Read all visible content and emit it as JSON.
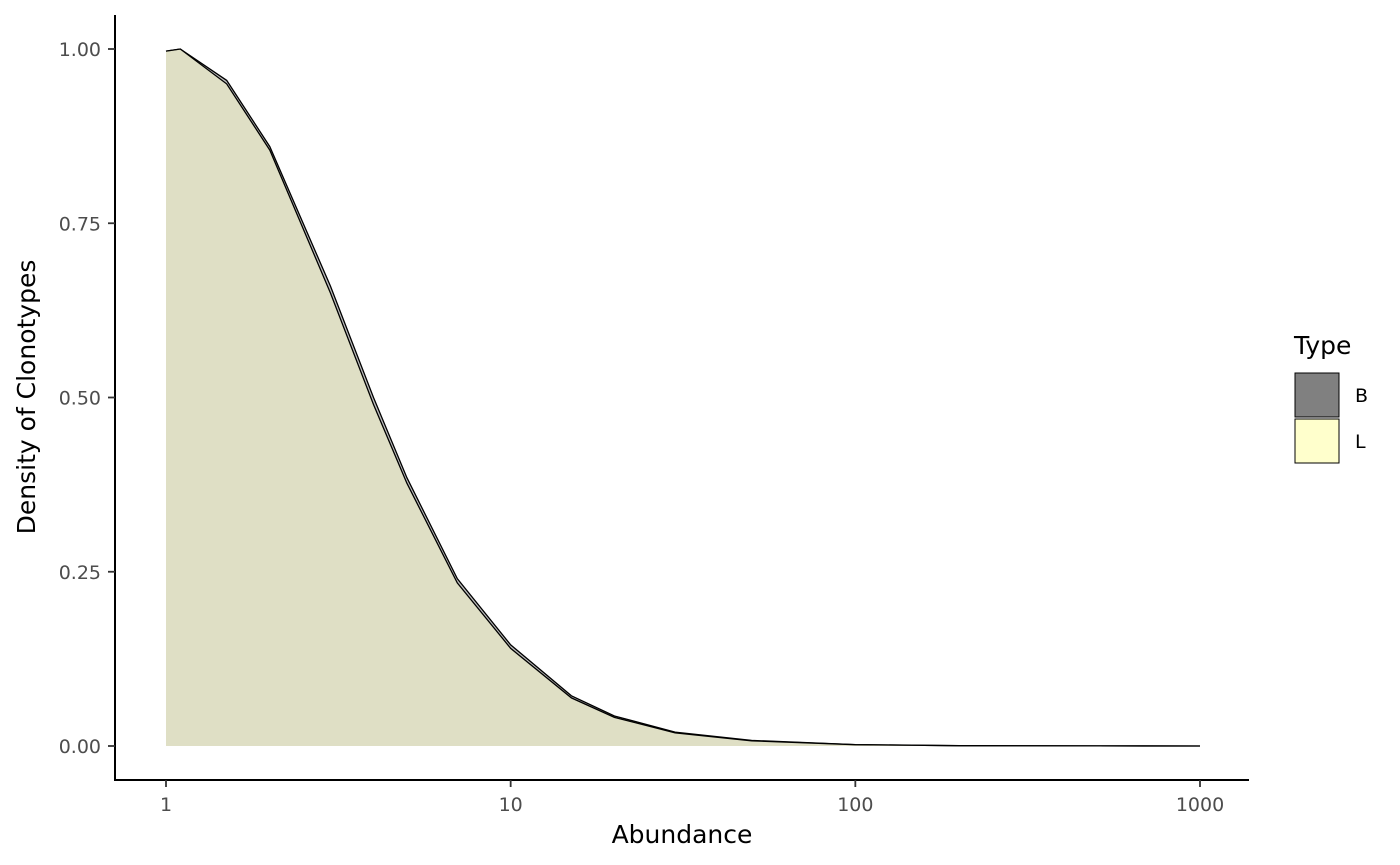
{
  "chart_data": {
    "type": "area",
    "xlabel": "Abundance",
    "ylabel": "Density of Clonotypes",
    "x_scale": "log10",
    "xlim": [
      1,
      1000
    ],
    "ylim": [
      0,
      1
    ],
    "x_ticks": [
      "1",
      "10",
      "100",
      "1000"
    ],
    "y_ticks": [
      "0.00",
      "0.25",
      "0.50",
      "0.75",
      "1.00"
    ],
    "grid": false,
    "legend": {
      "title": "Type",
      "position": "right",
      "entries": [
        {
          "label": "B",
          "color": "#808080"
        },
        {
          "label": "L",
          "color": "#ffffcc"
        }
      ]
    },
    "series": [
      {
        "name": "B",
        "fill": "#808080",
        "alpha": 0.5,
        "x": [
          1,
          1.1,
          1.5,
          2,
          3,
          4,
          5,
          7,
          10,
          15,
          20,
          30,
          50,
          100,
          200,
          500,
          1000
        ],
        "y": [
          0.997,
          1.0,
          0.955,
          0.86,
          0.66,
          0.5,
          0.385,
          0.24,
          0.145,
          0.072,
          0.043,
          0.02,
          0.008,
          0.002,
          0.0005,
          0.0001,
          0
        ]
      },
      {
        "name": "L",
        "fill": "#ffffcc",
        "alpha": 0.5,
        "x": [
          1,
          1.1,
          1.5,
          2,
          3,
          4,
          5,
          7,
          10,
          15,
          20,
          30,
          50,
          100,
          200,
          500,
          1000
        ],
        "y": [
          0.997,
          1.0,
          0.95,
          0.855,
          0.65,
          0.49,
          0.377,
          0.234,
          0.14,
          0.069,
          0.041,
          0.019,
          0.0075,
          0.0018,
          0.0004,
          0.0001,
          0
        ]
      }
    ]
  }
}
